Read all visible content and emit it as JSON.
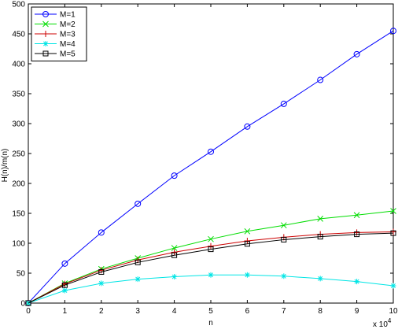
{
  "chart_data": {
    "type": "line",
    "title": "",
    "xlabel": "n",
    "ylabel": "H(n)/m(n)",
    "x_multiplier_label": "x 10",
    "x_multiplier_exp": "4",
    "xlim": [
      0,
      10
    ],
    "ylim": [
      0,
      500
    ],
    "x_ticks": [
      "0",
      "1",
      "2",
      "3",
      "4",
      "5",
      "6",
      "7",
      "8",
      "9",
      "10"
    ],
    "y_ticks": [
      "0",
      "50",
      "100",
      "150",
      "200",
      "250",
      "300",
      "350",
      "400",
      "450",
      "500"
    ],
    "grid": false,
    "legend_position": "top-left",
    "x": [
      0,
      1,
      2,
      3,
      4,
      5,
      6,
      7,
      8,
      9,
      10
    ],
    "series": [
      {
        "name": "M=1",
        "color": "#0000ff",
        "marker": "circle",
        "values": [
          0,
          66,
          118,
          166,
          213,
          253,
          295,
          333,
          373,
          416,
          455
        ]
      },
      {
        "name": "M=2",
        "color": "#00dd00",
        "marker": "x",
        "values": [
          0,
          33,
          57,
          75,
          92,
          107,
          120,
          130,
          141,
          147,
          154
        ]
      },
      {
        "name": "M=3",
        "color": "#cc0000",
        "marker": "plus",
        "values": [
          0,
          32,
          55,
          72,
          85,
          95,
          104,
          110,
          115,
          118,
          119
        ]
      },
      {
        "name": "M=4",
        "color": "#00e5e5",
        "marker": "star",
        "values": [
          0,
          21,
          33,
          40,
          44,
          47,
          47,
          45,
          41,
          36,
          29
        ]
      },
      {
        "name": "M=5",
        "color": "#000000",
        "marker": "square",
        "values": [
          0,
          30,
          52,
          68,
          80,
          90,
          99,
          106,
          111,
          115,
          117
        ]
      }
    ]
  }
}
